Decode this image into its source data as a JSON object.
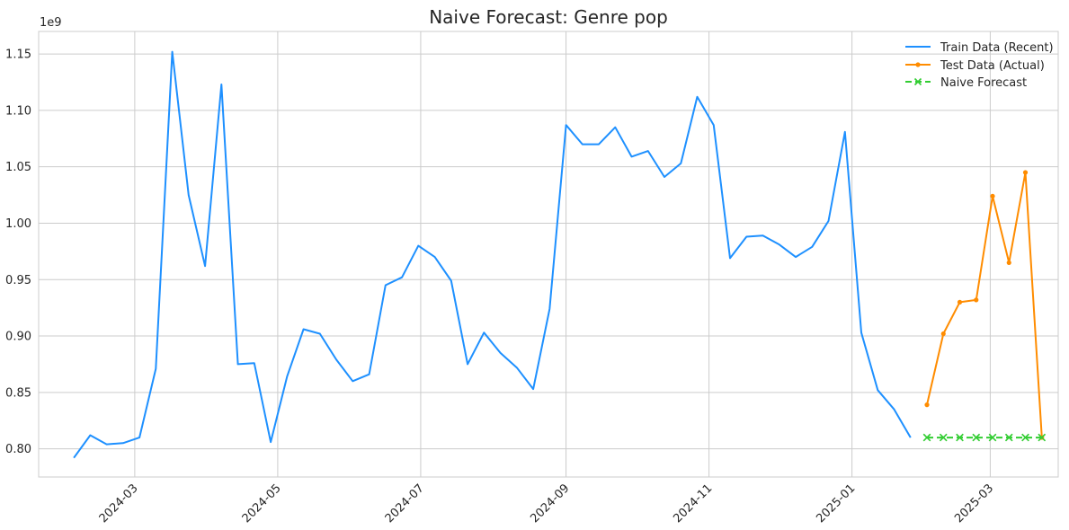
{
  "chart_data": {
    "type": "line",
    "title": "Naive Forecast: Genre pop",
    "xlabel": "",
    "ylabel": "",
    "y_offset_label": "1e9",
    "x_axis_type": "date",
    "xlim": [
      "2024-01-20",
      "2025-03-30"
    ],
    "ylim": [
      0.775,
      1.17
    ],
    "y_ticks": [
      0.8,
      0.85,
      0.9,
      0.95,
      1.0,
      1.05,
      1.1,
      1.15
    ],
    "y_tick_labels": [
      "0.80",
      "0.85",
      "0.90",
      "0.95",
      "1.00",
      "1.05",
      "1.10",
      "1.15"
    ],
    "x_ticks": [
      "2024-03-01",
      "2024-05-01",
      "2024-07-01",
      "2024-09-01",
      "2024-11-01",
      "2025-01-01",
      "2025-03-01"
    ],
    "x_tick_labels": [
      "2024-03",
      "2024-05",
      "2024-07",
      "2024-09",
      "2024-11",
      "2025-01",
      "2025-03"
    ],
    "grid": true,
    "legend_position": "top-right",
    "series": [
      {
        "name": "Train Data (Recent)",
        "color": "#1e90ff",
        "marker": "none",
        "linestyle": "solid",
        "x": [
          "2024-02-04",
          "2024-02-11",
          "2024-02-18",
          "2024-02-25",
          "2024-03-03",
          "2024-03-10",
          "2024-03-17",
          "2024-03-24",
          "2024-03-31",
          "2024-04-07",
          "2024-04-14",
          "2024-04-21",
          "2024-04-28",
          "2024-05-05",
          "2024-05-12",
          "2024-05-19",
          "2024-05-26",
          "2024-06-02",
          "2024-06-09",
          "2024-06-16",
          "2024-06-23",
          "2024-06-30",
          "2024-07-07",
          "2024-07-14",
          "2024-07-21",
          "2024-07-28",
          "2024-08-04",
          "2024-08-11",
          "2024-08-18",
          "2024-08-25",
          "2024-09-01",
          "2024-09-08",
          "2024-09-15",
          "2024-09-22",
          "2024-09-29",
          "2024-10-06",
          "2024-10-13",
          "2024-10-20",
          "2024-10-27",
          "2024-11-03",
          "2024-11-10",
          "2024-11-17",
          "2024-11-24",
          "2024-12-01",
          "2024-12-08",
          "2024-12-15",
          "2024-12-22",
          "2024-12-29",
          "2025-01-05",
          "2025-01-12",
          "2025-01-19",
          "2025-01-26"
        ],
        "values": [
          0.792,
          0.812,
          0.804,
          0.805,
          0.81,
          0.871,
          1.152,
          1.025,
          0.962,
          1.123,
          0.875,
          0.876,
          0.806,
          0.864,
          0.906,
          0.902,
          0.879,
          0.86,
          0.866,
          0.945,
          0.952,
          0.98,
          0.97,
          0.949,
          0.875,
          0.903,
          0.885,
          0.872,
          0.853,
          0.924,
          1.087,
          1.07,
          1.07,
          1.085,
          1.059,
          1.064,
          1.041,
          1.053,
          1.112,
          1.087,
          0.969,
          0.988,
          0.989,
          0.981,
          0.97,
          0.979,
          1.002,
          1.081,
          0.903,
          0.852,
          0.835,
          0.81
        ]
      },
      {
        "name": "Test Data (Actual)",
        "color": "#ff8c00",
        "marker": "dot",
        "linestyle": "solid",
        "x": [
          "2025-02-02",
          "2025-02-09",
          "2025-02-16",
          "2025-02-23",
          "2025-03-02",
          "2025-03-09",
          "2025-03-16",
          "2025-03-23"
        ],
        "values": [
          0.839,
          0.902,
          0.93,
          0.932,
          1.024,
          0.965,
          1.045,
          0.81
        ]
      },
      {
        "name": "Naive Forecast",
        "color": "#32cd32",
        "marker": "x",
        "linestyle": "dashed",
        "x": [
          "2025-02-02",
          "2025-02-09",
          "2025-02-16",
          "2025-02-23",
          "2025-03-02",
          "2025-03-09",
          "2025-03-16",
          "2025-03-23"
        ],
        "values": [
          0.81,
          0.81,
          0.81,
          0.81,
          0.81,
          0.81,
          0.81,
          0.81
        ]
      }
    ]
  }
}
